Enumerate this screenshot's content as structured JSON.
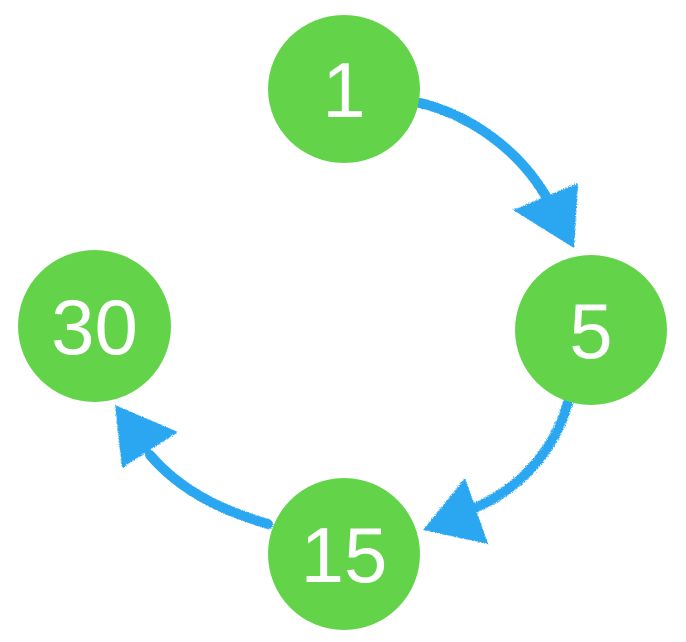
{
  "colors": {
    "node_fill": "#63d44a",
    "arrow": "#2ba7f0",
    "label": "#ffffff"
  },
  "nodes": [
    {
      "id": "node-1",
      "label": "1"
    },
    {
      "id": "node-5",
      "label": "5"
    },
    {
      "id": "node-15",
      "label": "15"
    },
    {
      "id": "node-30",
      "label": "30"
    }
  ],
  "edges": [
    {
      "from": "1",
      "to": "5"
    },
    {
      "from": "5",
      "to": "15"
    },
    {
      "from": "15",
      "to": "30"
    }
  ]
}
